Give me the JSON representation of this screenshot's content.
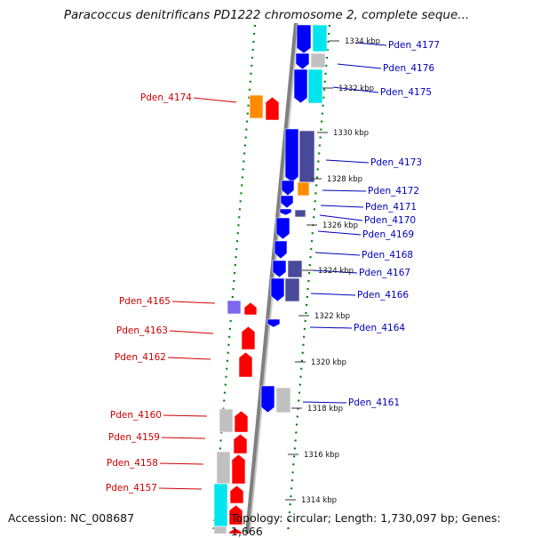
{
  "title": "Paracoccus denitrificans PD1222 chromosome 2, complete seque...",
  "footer": {
    "accession": "Accession: NC_008687",
    "topology": "Topology: circular; Length: 1,730,097 bp; Genes: 1,666"
  },
  "colors": {
    "forward_gene": "#ff0000",
    "reverse_gene": "#0000ff",
    "orange_feature": "#ff8c00",
    "cyan_feature": "#00e5ee",
    "gray_feature": "#c0c0c0",
    "purple_feature": "#4a4a9a",
    "backbone": "#808080",
    "tick_dots": "#008000",
    "left_labels": "#cc0000",
    "right_labels": "#0000bb"
  },
  "kbp_labels": [
    "1334 kbp",
    "1332 kbp",
    "1330 kbp",
    "1328 kbp",
    "1326 kbp",
    "1324 kbp",
    "1322 kbp",
    "1320 kbp",
    "1318 kbp",
    "1316 kbp",
    "1314 kbp"
  ],
  "right_genes": [
    "Pden_4177",
    "Pden_4176",
    "Pden_4175",
    "Pden_4173",
    "Pden_4172",
    "Pden_4171",
    "Pden_4170",
    "Pden_4169",
    "Pden_4168",
    "Pden_4167",
    "Pden_4166",
    "Pden_4164",
    "Pden_4161"
  ],
  "left_genes": [
    "Pden_4174",
    "Pden_4165",
    "Pden_4163",
    "Pden_4162",
    "Pden_4160",
    "Pden_4159",
    "Pden_4158",
    "Pden_4157"
  ]
}
